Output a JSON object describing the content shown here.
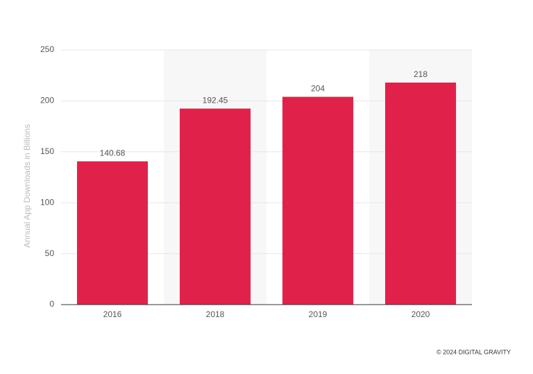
{
  "chart_data": {
    "type": "bar",
    "y_label": "Annual App Downloads in Billions",
    "categories": [
      "2016",
      "2018",
      "2019",
      "2020"
    ],
    "values": [
      140.68,
      192.45,
      204,
      218
    ],
    "color": "#e0224b",
    "ylim": [
      0,
      250
    ],
    "yticks": [
      0,
      50,
      100,
      150,
      200,
      250
    ],
    "grid": true,
    "band_shading": true
  },
  "footer": "© 2024 DIGITAL GRAVITY"
}
